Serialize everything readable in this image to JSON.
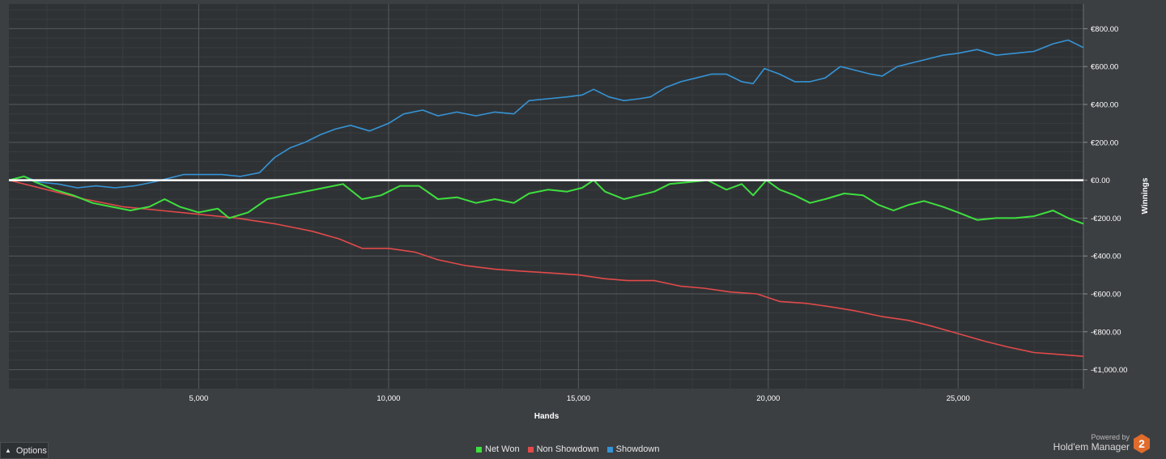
{
  "chart_data": {
    "type": "line",
    "xlabel": "Hands",
    "ylabel": "Winnings",
    "xlim": [
      0,
      28300
    ],
    "ylim": [
      -1100,
      930
    ],
    "x_ticks": [
      {
        "value": 5000,
        "label": "5,000"
      },
      {
        "value": 10000,
        "label": "10,000"
      },
      {
        "value": 15000,
        "label": "15,000"
      },
      {
        "value": 20000,
        "label": "20,000"
      },
      {
        "value": 25000,
        "label": "25,000"
      }
    ],
    "y_ticks": [
      {
        "value": 800,
        "label": "€800.00"
      },
      {
        "value": 600,
        "label": "€600.00"
      },
      {
        "value": 400,
        "label": "€400.00"
      },
      {
        "value": 200,
        "label": "€200.00"
      },
      {
        "value": 0,
        "label": "€0.00"
      },
      {
        "value": -200,
        "label": "-€200.00"
      },
      {
        "value": -400,
        "label": "-€400.00"
      },
      {
        "value": -600,
        "label": "-€600.00"
      },
      {
        "value": -800,
        "label": "-€800.00"
      },
      {
        "value": -1000,
        "label": "-€1,000.00"
      }
    ],
    "grid": true,
    "legend_position": "bottom",
    "series": [
      {
        "name": "Net Won",
        "color": "#3ee03e",
        "points": [
          [
            0,
            0
          ],
          [
            400,
            20
          ],
          [
            700,
            -10
          ],
          [
            1200,
            -50
          ],
          [
            1700,
            -80
          ],
          [
            2200,
            -120
          ],
          [
            2700,
            -140
          ],
          [
            3200,
            -160
          ],
          [
            3700,
            -140
          ],
          [
            4100,
            -100
          ],
          [
            4500,
            -140
          ],
          [
            5000,
            -170
          ],
          [
            5500,
            -150
          ],
          [
            5800,
            -200
          ],
          [
            6300,
            -170
          ],
          [
            6800,
            -100
          ],
          [
            7300,
            -80
          ],
          [
            7800,
            -60
          ],
          [
            8300,
            -40
          ],
          [
            8800,
            -20
          ],
          [
            9300,
            -100
          ],
          [
            9800,
            -80
          ],
          [
            10300,
            -30
          ],
          [
            10800,
            -30
          ],
          [
            11300,
            -100
          ],
          [
            11800,
            -90
          ],
          [
            12300,
            -120
          ],
          [
            12800,
            -100
          ],
          [
            13300,
            -120
          ],
          [
            13700,
            -70
          ],
          [
            14200,
            -50
          ],
          [
            14700,
            -60
          ],
          [
            15100,
            -40
          ],
          [
            15400,
            0
          ],
          [
            15700,
            -60
          ],
          [
            16200,
            -100
          ],
          [
            16600,
            -80
          ],
          [
            17000,
            -60
          ],
          [
            17400,
            -20
          ],
          [
            17900,
            -10
          ],
          [
            18400,
            0
          ],
          [
            18900,
            -50
          ],
          [
            19300,
            -20
          ],
          [
            19600,
            -80
          ],
          [
            19950,
            0
          ],
          [
            20300,
            -50
          ],
          [
            20700,
            -80
          ],
          [
            21100,
            -120
          ],
          [
            21500,
            -100
          ],
          [
            22000,
            -70
          ],
          [
            22500,
            -80
          ],
          [
            22900,
            -130
          ],
          [
            23300,
            -160
          ],
          [
            23700,
            -130
          ],
          [
            24100,
            -110
          ],
          [
            24600,
            -140
          ],
          [
            25000,
            -170
          ],
          [
            25500,
            -210
          ],
          [
            26000,
            -200
          ],
          [
            26500,
            -200
          ],
          [
            27000,
            -190
          ],
          [
            27500,
            -160
          ],
          [
            27900,
            -200
          ],
          [
            28300,
            -230
          ]
        ]
      },
      {
        "name": "Non Showdown",
        "color": "#e24a4a",
        "points": [
          [
            0,
            0
          ],
          [
            1000,
            -50
          ],
          [
            2000,
            -100
          ],
          [
            3000,
            -140
          ],
          [
            4000,
            -160
          ],
          [
            5000,
            -180
          ],
          [
            6000,
            -200
          ],
          [
            7000,
            -230
          ],
          [
            8000,
            -270
          ],
          [
            8700,
            -310
          ],
          [
            9300,
            -360
          ],
          [
            10000,
            -360
          ],
          [
            10700,
            -380
          ],
          [
            11300,
            -420
          ],
          [
            12000,
            -450
          ],
          [
            12800,
            -470
          ],
          [
            13500,
            -480
          ],
          [
            14300,
            -490
          ],
          [
            15000,
            -500
          ],
          [
            15700,
            -520
          ],
          [
            16300,
            -530
          ],
          [
            17000,
            -530
          ],
          [
            17700,
            -560
          ],
          [
            18300,
            -570
          ],
          [
            19000,
            -590
          ],
          [
            19700,
            -600
          ],
          [
            20300,
            -640
          ],
          [
            21000,
            -650
          ],
          [
            21700,
            -670
          ],
          [
            22300,
            -690
          ],
          [
            23000,
            -720
          ],
          [
            23700,
            -740
          ],
          [
            24300,
            -770
          ],
          [
            25000,
            -810
          ],
          [
            25700,
            -850
          ],
          [
            26300,
            -880
          ],
          [
            27000,
            -910
          ],
          [
            27700,
            -920
          ],
          [
            28300,
            -930
          ]
        ]
      },
      {
        "name": "Showdown",
        "color": "#3594d6",
        "points": [
          [
            0,
            0
          ],
          [
            400,
            20
          ],
          [
            800,
            -10
          ],
          [
            1300,
            -20
          ],
          [
            1800,
            -40
          ],
          [
            2300,
            -30
          ],
          [
            2800,
            -40
          ],
          [
            3300,
            -30
          ],
          [
            3800,
            -10
          ],
          [
            4200,
            10
          ],
          [
            4600,
            30
          ],
          [
            5100,
            30
          ],
          [
            5600,
            30
          ],
          [
            6100,
            20
          ],
          [
            6600,
            40
          ],
          [
            7000,
            120
          ],
          [
            7400,
            170
          ],
          [
            7800,
            200
          ],
          [
            8200,
            240
          ],
          [
            8600,
            270
          ],
          [
            9000,
            290
          ],
          [
            9500,
            260
          ],
          [
            10000,
            300
          ],
          [
            10400,
            350
          ],
          [
            10900,
            370
          ],
          [
            11300,
            340
          ],
          [
            11800,
            360
          ],
          [
            12300,
            340
          ],
          [
            12800,
            360
          ],
          [
            13300,
            350
          ],
          [
            13700,
            420
          ],
          [
            14200,
            430
          ],
          [
            14700,
            440
          ],
          [
            15100,
            450
          ],
          [
            15400,
            480
          ],
          [
            15800,
            440
          ],
          [
            16200,
            420
          ],
          [
            16600,
            430
          ],
          [
            16900,
            440
          ],
          [
            17300,
            490
          ],
          [
            17700,
            520
          ],
          [
            18100,
            540
          ],
          [
            18500,
            560
          ],
          [
            18900,
            560
          ],
          [
            19300,
            520
          ],
          [
            19600,
            510
          ],
          [
            19900,
            590
          ],
          [
            20300,
            560
          ],
          [
            20700,
            520
          ],
          [
            21100,
            520
          ],
          [
            21500,
            540
          ],
          [
            21900,
            600
          ],
          [
            22300,
            580
          ],
          [
            22700,
            560
          ],
          [
            23000,
            550
          ],
          [
            23400,
            600
          ],
          [
            23800,
            620
          ],
          [
            24200,
            640
          ],
          [
            24600,
            660
          ],
          [
            25000,
            670
          ],
          [
            25500,
            690
          ],
          [
            26000,
            660
          ],
          [
            26500,
            670
          ],
          [
            27000,
            680
          ],
          [
            27500,
            720
          ],
          [
            27900,
            740
          ],
          [
            28300,
            700
          ]
        ]
      }
    ]
  },
  "controls": {
    "options_label": "Options"
  },
  "legend": {
    "items": [
      {
        "label": "Net Won",
        "color": "#3ee03e"
      },
      {
        "label": "Non Showdown",
        "color": "#e24a4a"
      },
      {
        "label": "Showdown",
        "color": "#3594d6"
      }
    ]
  },
  "branding": {
    "powered_by": "Powered by",
    "product": "Hold'em Manager",
    "logo_glyph": "2"
  }
}
